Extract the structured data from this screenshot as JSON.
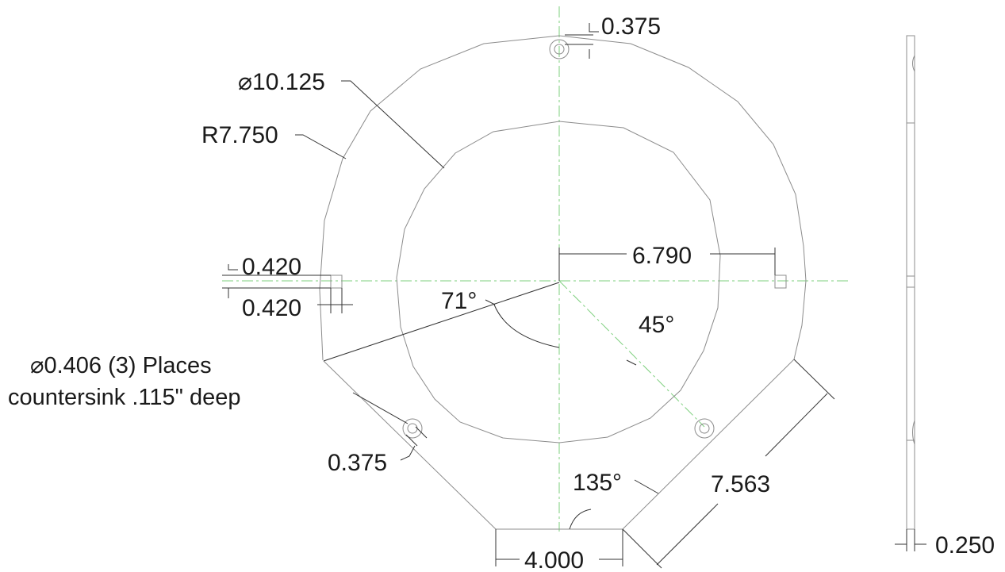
{
  "drawing": {
    "labels": {
      "top_hole_offset": "0.375",
      "inner_diameter": "⌀10.125",
      "outer_radius": "R7.750",
      "left_offset_top": "0.420",
      "left_offset_bottom": "0.420",
      "horizontal_span": "6.790",
      "angle_left": "71°",
      "angle_right": "45°",
      "hole_note_line1": "⌀0.406 (3) Places",
      "hole_note_line2": "countersink .115\" deep",
      "left_hole_offset": "0.375",
      "bottom_angle": "135°",
      "diagonal_edge": "7.563",
      "bottom_width": "4.000",
      "thickness": "0.250"
    },
    "colors": {
      "part_line": "#8c8c8c",
      "dimension_line": "#333333",
      "center_line": "#7ccf7c",
      "text": "#1a1a1a"
    }
  }
}
